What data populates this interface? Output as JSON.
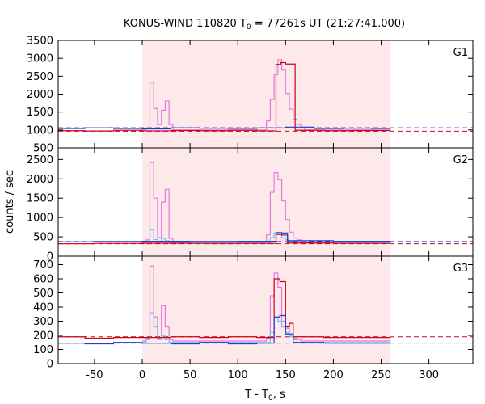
{
  "chart_data": {
    "type": "line",
    "title": "KONUS-WIND 110820 T0 = 77261s UT (21:27:41.000)",
    "title_parts": {
      "prefix": "KONUS-WIND 110820 T",
      "subscript": "0",
      "suffix": " = 77261s UT (21:27:41.000)"
    },
    "xlabel_parts": {
      "prefix": "T - T",
      "subscript": "0",
      "suffix": ", s"
    },
    "ylabel": "counts / sec",
    "xlim": [
      -88,
      346
    ],
    "x_ticks": [
      -50,
      0,
      50,
      100,
      150,
      200,
      250,
      300
    ],
    "shaded_interval": [
      0,
      260
    ],
    "colors": {
      "shade": "#fde8ea",
      "pink": "#e27ae2",
      "red": "#d0001c",
      "blue": "#1c3fd0",
      "light_blue": "#6cc6ee"
    },
    "panels": [
      {
        "label": "G1",
        "ylim": [
          500,
          3500
        ],
        "y_ticks": [
          500,
          1000,
          1500,
          2000,
          2500,
          3000,
          3500
        ],
        "series": [
          {
            "name": "pink (G1 fine)",
            "color_key": "pink",
            "step": true,
            "x": [
              0,
              4,
              8,
              12,
              16,
              20,
              24,
              28,
              32,
              130,
              134,
              138,
              142,
              146,
              150,
              154,
              158,
              162,
              166,
              170,
              260
            ],
            "y": [
              1000,
              1050,
              2330,
              1600,
              1150,
              1550,
              1810,
              1150,
              1000,
              1250,
              1850,
              2550,
              2960,
              2670,
              2020,
              1580,
              1300,
              1150,
              1060,
              1000,
              1000
            ]
          },
          {
            "name": "red (G1 background)",
            "color_key": "red",
            "step": true,
            "x": [
              -88,
              -60,
              -30,
              0,
              30,
              60,
              90,
              120,
              140,
              145,
              150,
              160,
              190,
              220,
              260
            ],
            "y": [
              980,
              970,
              990,
              975,
              985,
              980,
              990,
              975,
              2830,
              2880,
              2840,
              990,
              980,
              985,
              985
            ]
          },
          {
            "name": "blue (G1 background)",
            "color_key": "blue",
            "step": true,
            "x": [
              -88,
              -60,
              -30,
              0,
              30,
              60,
              90,
              120,
              150,
              180,
              210,
              240,
              260
            ],
            "y": [
              1040,
              1060,
              1040,
              1030,
              1060,
              1050,
              1045,
              1055,
              1080,
              1040,
              1050,
              1040,
              1040
            ]
          }
        ],
        "fit_lines": [
          {
            "color_key": "red",
            "value": 965
          },
          {
            "color_key": "blue",
            "value": 1060
          }
        ]
      },
      {
        "label": "G2",
        "ylim": [
          0,
          2800
        ],
        "y_ticks": [
          0,
          500,
          1000,
          1500,
          2000,
          2500
        ],
        "series": [
          {
            "name": "pink (G2 fine)",
            "color_key": "pink",
            "step": true,
            "x": [
              0,
              4,
              8,
              12,
              16,
              20,
              24,
              28,
              32,
              130,
              134,
              138,
              142,
              146,
              150,
              154,
              158,
              162,
              166,
              170,
              260
            ],
            "y": [
              350,
              420,
              2420,
              1500,
              480,
              1400,
              1730,
              460,
              380,
              550,
              1650,
              2160,
              1980,
              1430,
              950,
              620,
              470,
              420,
              390,
              360,
              360
            ]
          },
          {
            "name": "light blue (G2)",
            "color_key": "light_blue",
            "step": true,
            "x": [
              0,
              4,
              8,
              12,
              16,
              20,
              24,
              28,
              32,
              134,
              138,
              142,
              146,
              150,
              154,
              158,
              162,
              260
            ],
            "y": [
              350,
              380,
              680,
              430,
              360,
              460,
              400,
              360,
              350,
              480,
              600,
              560,
              470,
              420,
              380,
              360,
              350,
              350
            ]
          },
          {
            "name": "red (G2 background)",
            "color_key": "red",
            "step": true,
            "x": [
              -88,
              -50,
              0,
              50,
              100,
              140,
              146,
              152,
              200,
              260
            ],
            "y": [
              320,
              330,
              335,
              330,
              330,
              560,
              545,
              340,
              330,
              330
            ]
          },
          {
            "name": "blue (G2 background)",
            "color_key": "blue",
            "step": true,
            "x": [
              -88,
              -50,
              0,
              50,
              100,
              140,
              146,
              152,
              200,
              260
            ],
            "y": [
              370,
              380,
              385,
              380,
              385,
              610,
              600,
              400,
              385,
              385
            ]
          }
        ],
        "fit_lines": [
          {
            "color_key": "red",
            "value": 320
          },
          {
            "color_key": "blue",
            "value": 380
          }
        ]
      },
      {
        "label": "G3",
        "ylim": [
          0,
          760
        ],
        "y_ticks": [
          0,
          100,
          200,
          300,
          400,
          500,
          600,
          700
        ],
        "series": [
          {
            "name": "pink (G3 fine)",
            "color_key": "pink",
            "step": true,
            "x": [
              0,
              4,
              8,
              12,
              16,
              20,
              24,
              28,
              32,
              130,
              134,
              138,
              142,
              146,
              150,
              154,
              158,
              162,
              166,
              260
            ],
            "y": [
              160,
              180,
              690,
              330,
              180,
              410,
              260,
              170,
              160,
              180,
              480,
              640,
              540,
              300,
              250,
              200,
              180,
              170,
              160,
              160
            ]
          },
          {
            "name": "light blue (G3)",
            "color_key": "light_blue",
            "step": true,
            "x": [
              0,
              4,
              8,
              12,
              16,
              20,
              24,
              28,
              32,
              134,
              138,
              142,
              146,
              150,
              154,
              158,
              162,
              260
            ],
            "y": [
              150,
              170,
              360,
              260,
              170,
              200,
              170,
              150,
              150,
              220,
              330,
              300,
              260,
              220,
              190,
              170,
              150,
              150
            ]
          },
          {
            "name": "red (G3 background)",
            "color_key": "red",
            "step": true,
            "x": [
              -88,
              -60,
              -30,
              0,
              30,
              60,
              90,
              120,
              138,
              144,
              150,
              154,
              158,
              190,
              220,
              260
            ],
            "y": [
              190,
              180,
              185,
              185,
              190,
              185,
              190,
              185,
              600,
              580,
              260,
              285,
              190,
              185,
              185,
              185
            ]
          },
          {
            "name": "blue (G3 background)",
            "color_key": "blue",
            "step": true,
            "x": [
              -88,
              -60,
              -30,
              0,
              30,
              60,
              90,
              120,
              138,
              144,
              150,
              158,
              190,
              220,
              260
            ],
            "y": [
              145,
              140,
              150,
              145,
              140,
              150,
              140,
              145,
              330,
              340,
              210,
              150,
              145,
              145,
              145
            ]
          }
        ],
        "fit_lines": [
          {
            "color_key": "red",
            "value": 190
          },
          {
            "color_key": "blue",
            "value": 145
          }
        ]
      }
    ]
  }
}
